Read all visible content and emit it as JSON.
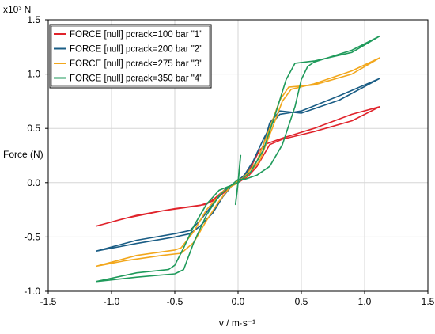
{
  "chart_data": {
    "type": "line",
    "title": "",
    "xlabel": "v / m·s⁻¹",
    "ylabel": "Force (N)",
    "y_unit_label": "x10³ N",
    "xlim": [
      -1.5,
      1.5
    ],
    "ylim": [
      -1.0,
      1.5
    ],
    "x_ticks": [
      -1.5,
      -1.0,
      -0.5,
      0.0,
      0.5,
      1.0,
      1.5
    ],
    "x_tick_labels": [
      "-1.5",
      "-1.0",
      "-0.5",
      "0.0",
      "0.5",
      "1.0",
      "1.5"
    ],
    "y_ticks": [
      -1.0,
      -0.5,
      0.0,
      0.5,
      1.0,
      1.5
    ],
    "y_tick_labels": [
      "-1.0",
      "-0.5",
      "0.0",
      "0.5",
      "1.0",
      "1.5"
    ],
    "grid": true,
    "legend_position": "top-left",
    "series": [
      {
        "name": "FORCE [null] pcrack=100 bar \"1\"",
        "color": "#e0232b",
        "points": [
          [
            -1.12,
            -0.4
          ],
          [
            -0.8,
            -0.3
          ],
          [
            -0.5,
            -0.24
          ],
          [
            -0.25,
            -0.2
          ],
          [
            -0.18,
            -0.14
          ],
          [
            -0.1,
            -0.06
          ],
          [
            0.0,
            0.0
          ],
          [
            0.08,
            0.06
          ],
          [
            0.15,
            0.15
          ],
          [
            0.2,
            0.25
          ],
          [
            0.25,
            0.35
          ],
          [
            0.35,
            0.4
          ],
          [
            0.6,
            0.47
          ],
          [
            0.9,
            0.57
          ],
          [
            1.12,
            0.7
          ],
          [
            0.9,
            0.63
          ],
          [
            0.6,
            0.5
          ],
          [
            0.35,
            0.41
          ],
          [
            0.23,
            0.36
          ],
          [
            0.17,
            0.3
          ],
          [
            0.1,
            0.14
          ],
          [
            0.05,
            0.06
          ],
          [
            0.0,
            0.02
          ],
          [
            -0.05,
            -0.03
          ],
          [
            -0.12,
            -0.1
          ],
          [
            -0.2,
            -0.17
          ],
          [
            -0.3,
            -0.21
          ],
          [
            -0.6,
            -0.26
          ],
          [
            -0.9,
            -0.33
          ],
          [
            -1.12,
            -0.4
          ]
        ]
      },
      {
        "name": "FORCE [null] pcrack=200 bar \"2\"",
        "color": "#1a5d85",
        "points": [
          [
            -1.12,
            -0.63
          ],
          [
            -0.8,
            -0.53
          ],
          [
            -0.5,
            -0.47
          ],
          [
            -0.38,
            -0.44
          ],
          [
            -0.3,
            -0.35
          ],
          [
            -0.2,
            -0.2
          ],
          [
            -0.1,
            -0.06
          ],
          [
            0.0,
            0.0
          ],
          [
            0.05,
            0.06
          ],
          [
            0.15,
            0.2
          ],
          [
            0.2,
            0.35
          ],
          [
            0.25,
            0.55
          ],
          [
            0.33,
            0.66
          ],
          [
            0.5,
            0.64
          ],
          [
            0.8,
            0.76
          ],
          [
            1.12,
            0.96
          ],
          [
            0.8,
            0.8
          ],
          [
            0.5,
            0.66
          ],
          [
            0.33,
            0.63
          ],
          [
            0.27,
            0.55
          ],
          [
            0.2,
            0.4
          ],
          [
            0.12,
            0.2
          ],
          [
            0.05,
            0.07
          ],
          [
            0.0,
            0.02
          ],
          [
            -0.05,
            -0.03
          ],
          [
            -0.12,
            -0.13
          ],
          [
            -0.2,
            -0.28
          ],
          [
            -0.3,
            -0.4
          ],
          [
            -0.38,
            -0.47
          ],
          [
            -0.5,
            -0.5
          ],
          [
            -0.8,
            -0.56
          ],
          [
            -1.12,
            -0.63
          ]
        ]
      },
      {
        "name": "FORCE [null] pcrack=275 bar \"3\"",
        "color": "#f2a71c",
        "points": [
          [
            -1.12,
            -0.77
          ],
          [
            -0.8,
            -0.67
          ],
          [
            -0.5,
            -0.62
          ],
          [
            -0.45,
            -0.6
          ],
          [
            -0.35,
            -0.45
          ],
          [
            -0.25,
            -0.25
          ],
          [
            -0.12,
            -0.08
          ],
          [
            0.0,
            0.0
          ],
          [
            0.07,
            0.08
          ],
          [
            0.15,
            0.2
          ],
          [
            0.25,
            0.5
          ],
          [
            0.33,
            0.76
          ],
          [
            0.4,
            0.88
          ],
          [
            0.6,
            0.9
          ],
          [
            0.9,
            1.0
          ],
          [
            1.12,
            1.15
          ],
          [
            0.9,
            1.03
          ],
          [
            0.6,
            0.91
          ],
          [
            0.42,
            0.86
          ],
          [
            0.35,
            0.75
          ],
          [
            0.27,
            0.5
          ],
          [
            0.17,
            0.2
          ],
          [
            0.07,
            0.06
          ],
          [
            0.0,
            0.02
          ],
          [
            -0.07,
            -0.05
          ],
          [
            -0.15,
            -0.17
          ],
          [
            -0.25,
            -0.35
          ],
          [
            -0.35,
            -0.55
          ],
          [
            -0.45,
            -0.65
          ],
          [
            -0.6,
            -0.67
          ],
          [
            -0.9,
            -0.72
          ],
          [
            -1.12,
            -0.77
          ]
        ]
      },
      {
        "name": "FORCE [null] pcrack=350 bar \"4\"",
        "color": "#1f9a5b",
        "points": [
          [
            -1.12,
            -0.91
          ],
          [
            -0.8,
            -0.83
          ],
          [
            -0.55,
            -0.8
          ],
          [
            -0.5,
            -0.76
          ],
          [
            -0.43,
            -0.6
          ],
          [
            -0.35,
            -0.4
          ],
          [
            -0.25,
            -0.2
          ],
          [
            -0.15,
            -0.07
          ],
          [
            0.0,
            0.0
          ],
          [
            0.1,
            0.1
          ],
          [
            0.2,
            0.3
          ],
          [
            0.3,
            0.65
          ],
          [
            0.38,
            0.95
          ],
          [
            0.45,
            1.1
          ],
          [
            0.6,
            1.12
          ],
          [
            0.9,
            1.2
          ],
          [
            1.12,
            1.35
          ],
          [
            0.9,
            1.22
          ],
          [
            0.6,
            1.11
          ],
          [
            0.55,
            1.07
          ],
          [
            0.5,
            0.95
          ],
          [
            0.45,
            0.7
          ],
          [
            0.35,
            0.35
          ],
          [
            0.25,
            0.15
          ],
          [
            0.15,
            0.07
          ],
          [
            0.05,
            0.03
          ],
          [
            0.0,
            0.03
          ],
          [
            -0.05,
            -0.02
          ],
          [
            -0.15,
            -0.12
          ],
          [
            -0.25,
            -0.3
          ],
          [
            -0.35,
            -0.55
          ],
          [
            -0.43,
            -0.8
          ],
          [
            -0.5,
            -0.84
          ],
          [
            -0.8,
            -0.87
          ],
          [
            -1.12,
            -0.91
          ]
        ]
      },
      {
        "name": "",
        "color": "#1f9a5b",
        "points": [
          [
            0.02,
            0.25
          ],
          [
            0.0,
            0.0
          ],
          [
            -0.02,
            -0.2
          ]
        ]
      }
    ]
  }
}
